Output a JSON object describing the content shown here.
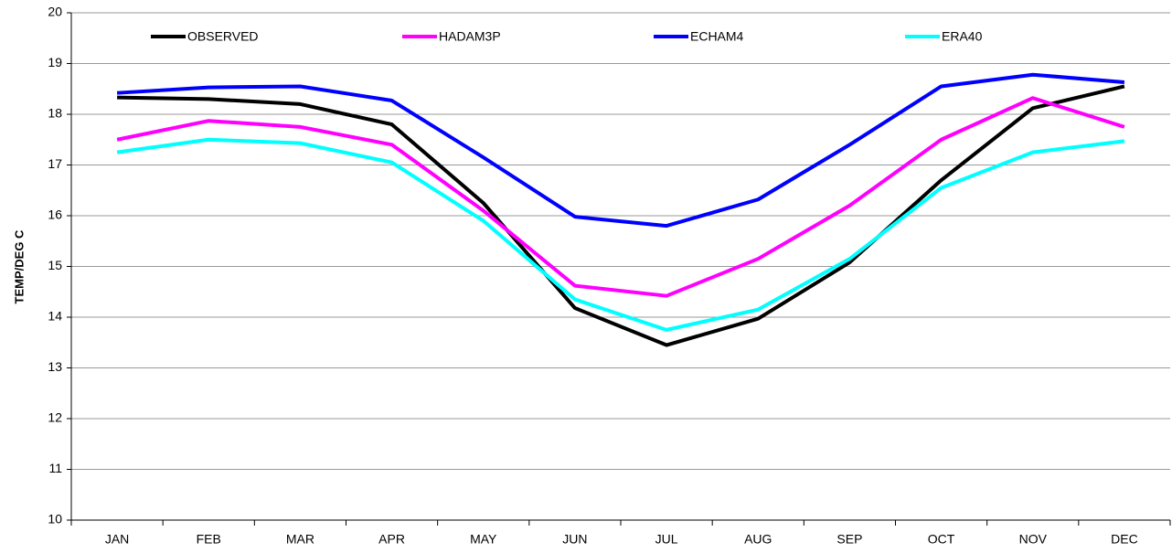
{
  "chart_data": {
    "type": "line",
    "y_label": "TEMP/DEG C",
    "categories": [
      "JAN",
      "FEB",
      "MAR",
      "APR",
      "MAY",
      "JUN",
      "JUL",
      "AUG",
      "SEP",
      "OCT",
      "NOV",
      "DEC"
    ],
    "series": [
      {
        "name": "OBSERVED",
        "color": "#000000",
        "values": [
          18.33,
          18.3,
          18.2,
          17.8,
          16.25,
          14.18,
          13.45,
          13.97,
          15.08,
          16.7,
          18.12,
          18.55
        ]
      },
      {
        "name": "HADAM3P",
        "color": "#ff00ff",
        "values": [
          17.5,
          17.87,
          17.75,
          17.4,
          16.1,
          14.62,
          14.42,
          15.15,
          16.2,
          17.5,
          18.32,
          17.75
        ]
      },
      {
        "name": "ECHAM4",
        "color": "#0000ff",
        "values": [
          18.42,
          18.53,
          18.55,
          18.27,
          17.15,
          15.98,
          15.8,
          16.32,
          17.4,
          18.55,
          18.78,
          18.63
        ]
      },
      {
        "name": "ERA40",
        "color": "#00ffff",
        "values": [
          17.25,
          17.5,
          17.43,
          17.05,
          15.9,
          14.35,
          13.75,
          14.15,
          15.15,
          16.55,
          17.25,
          17.47
        ]
      }
    ],
    "ylim": [
      10,
      20
    ],
    "yticks": [
      10,
      11,
      12,
      13,
      14,
      15,
      16,
      17,
      18,
      19,
      20
    ],
    "grid": true,
    "legend": "top"
  }
}
